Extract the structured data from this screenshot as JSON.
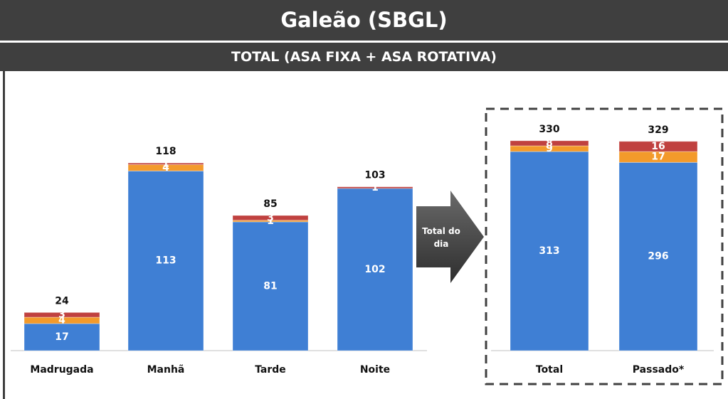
{
  "header": {
    "title": "Galeão (SBGL)",
    "subtitle": "TOTAL (ASA FIXA + ASA ROTATIVA)"
  },
  "arrow_label": "Total do dia",
  "chart_data": [
    {
      "type": "bar",
      "stacked": true,
      "categories": [
        "Madrugada",
        "Manhã",
        "Tarde",
        "Noite"
      ],
      "series": [
        {
          "color": "#3f7fd4",
          "values": [
            17,
            113,
            81,
            102
          ]
        },
        {
          "color": "#f39a2b",
          "values": [
            4,
            4,
            1,
            0
          ]
        },
        {
          "color": "#c0413f",
          "values": [
            3,
            1,
            3,
            1
          ]
        }
      ],
      "totals": [
        24,
        118,
        85,
        103
      ],
      "ylim": [
        0,
        140
      ]
    },
    {
      "type": "bar",
      "stacked": true,
      "categories": [
        "Total",
        "Passado*"
      ],
      "series": [
        {
          "color": "#3f7fd4",
          "values": [
            313,
            296
          ]
        },
        {
          "color": "#f39a2b",
          "values": [
            9,
            17
          ]
        },
        {
          "color": "#c0413f",
          "values": [
            8,
            16
          ]
        }
      ],
      "totals": [
        330,
        329
      ],
      "ylim": [
        0,
        350
      ]
    }
  ]
}
